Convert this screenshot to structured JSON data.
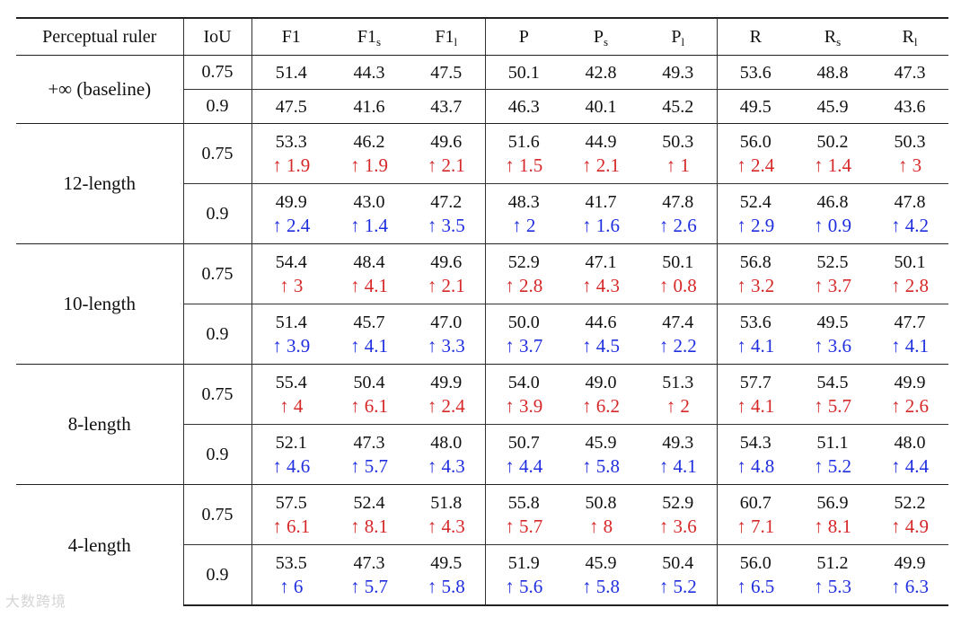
{
  "header": {
    "ruler": "Perceptual ruler",
    "iou": "IoU",
    "metrics": [
      {
        "base": "F1",
        "sub": ""
      },
      {
        "base": "F1",
        "sub": "s"
      },
      {
        "base": "F1",
        "sub": "l"
      },
      {
        "base": "P",
        "sub": ""
      },
      {
        "base": "P",
        "sub": "s"
      },
      {
        "base": "P",
        "sub": "l"
      },
      {
        "base": "R",
        "sub": ""
      },
      {
        "base": "R",
        "sub": "s"
      },
      {
        "base": "R",
        "sub": "l"
      }
    ]
  },
  "groups": [
    {
      "ruler": "+∞ (baseline)",
      "rows": [
        {
          "iou": "0.75",
          "values": [
            "51.4",
            "44.3",
            "47.5",
            "50.1",
            "42.8",
            "49.3",
            "53.6",
            "48.8",
            "47.3"
          ]
        },
        {
          "iou": "0.9",
          "values": [
            "47.5",
            "41.6",
            "43.7",
            "46.3",
            "40.1",
            "45.2",
            "49.5",
            "45.9",
            "43.6"
          ]
        }
      ]
    },
    {
      "ruler": "12-length",
      "rows": [
        {
          "iou": "0.75",
          "values": [
            "53.3",
            "46.2",
            "49.6",
            "51.6",
            "44.9",
            "50.3",
            "56.0",
            "50.2",
            "50.3"
          ],
          "deltas": [
            "↑ 1.9",
            "↑ 1.9",
            "↑ 2.1",
            "↑ 1.5",
            "↑ 2.1",
            "↑ 1",
            "↑ 2.4",
            "↑ 1.4",
            "↑ 3"
          ]
        },
        {
          "iou": "0.9",
          "values": [
            "49.9",
            "43.0",
            "47.2",
            "48.3",
            "41.7",
            "47.8",
            "52.4",
            "46.8",
            "47.8"
          ],
          "deltas": [
            "↑ 2.4",
            "↑ 1.4",
            "↑ 3.5",
            "↑ 2",
            "↑ 1.6",
            "↑ 2.6",
            "↑ 2.9",
            "↑ 0.9",
            "↑ 4.2"
          ]
        }
      ]
    },
    {
      "ruler": "10-length",
      "rows": [
        {
          "iou": "0.75",
          "values": [
            "54.4",
            "48.4",
            "49.6",
            "52.9",
            "47.1",
            "50.1",
            "56.8",
            "52.5",
            "50.1"
          ],
          "deltas": [
            "↑ 3",
            "↑ 4.1",
            "↑ 2.1",
            "↑ 2.8",
            "↑ 4.3",
            "↑ 0.8",
            "↑ 3.2",
            "↑ 3.7",
            "↑ 2.8"
          ]
        },
        {
          "iou": "0.9",
          "values": [
            "51.4",
            "45.7",
            "47.0",
            "50.0",
            "44.6",
            "47.4",
            "53.6",
            "49.5",
            "47.7"
          ],
          "deltas": [
            "↑ 3.9",
            "↑ 4.1",
            "↑ 3.3",
            "↑ 3.7",
            "↑ 4.5",
            "↑ 2.2",
            "↑ 4.1",
            "↑ 3.6",
            "↑ 4.1"
          ]
        }
      ]
    },
    {
      "ruler": "8-length",
      "rows": [
        {
          "iou": "0.75",
          "values": [
            "55.4",
            "50.4",
            "49.9",
            "54.0",
            "49.0",
            "51.3",
            "57.7",
            "54.5",
            "49.9"
          ],
          "deltas": [
            "↑ 4",
            "↑ 6.1",
            "↑ 2.4",
            "↑ 3.9",
            "↑ 6.2",
            "↑ 2",
            "↑ 4.1",
            "↑ 5.7",
            "↑ 2.6"
          ]
        },
        {
          "iou": "0.9",
          "values": [
            "52.1",
            "47.3",
            "48.0",
            "50.7",
            "45.9",
            "49.3",
            "54.3",
            "51.1",
            "48.0"
          ],
          "deltas": [
            "↑ 4.6",
            "↑ 5.7",
            "↑ 4.3",
            "↑ 4.4",
            "↑ 5.8",
            "↑ 4.1",
            "↑ 4.8",
            "↑ 5.2",
            "↑ 4.4"
          ]
        }
      ]
    },
    {
      "ruler": "4-length",
      "rows": [
        {
          "iou": "0.75",
          "values": [
            "57.5",
            "52.4",
            "51.8",
            "55.8",
            "50.8",
            "52.9",
            "60.7",
            "56.9",
            "52.2"
          ],
          "deltas": [
            "↑ 6.1",
            "↑ 8.1",
            "↑ 4.3",
            "↑ 5.7",
            "↑ 8",
            "↑ 3.6",
            "↑ 7.1",
            "↑ 8.1",
            "↑ 4.9"
          ]
        },
        {
          "iou": "0.9",
          "values": [
            "53.5",
            "47.3",
            "49.5",
            "51.9",
            "45.9",
            "50.4",
            "56.0",
            "51.2",
            "49.9"
          ],
          "deltas": [
            "↑ 6",
            "↑ 5.7",
            "↑ 5.8",
            "↑ 5.6",
            "↑ 5.8",
            "↑ 5.2",
            "↑ 6.5",
            "↑ 5.3",
            "↑ 6.3"
          ]
        }
      ]
    }
  ],
  "colors": {
    "delta_iou_075": "#d62828",
    "delta_iou_09": "#1f2fe0"
  },
  "watermark": "大数跨境"
}
